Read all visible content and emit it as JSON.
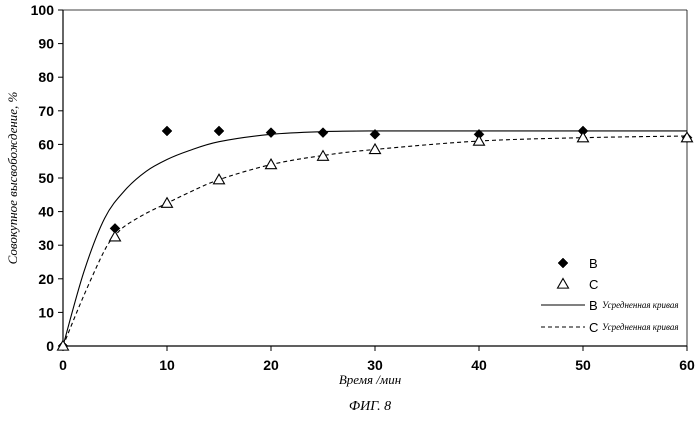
{
  "chart_data": {
    "type": "scatter",
    "figure_caption": "ФИГ. 8",
    "xlabel": "Время /мин",
    "ylabel": "Совокупное высвобождение, %",
    "xlim": [
      0,
      60
    ],
    "ylim": [
      0,
      100
    ],
    "x_ticks": [
      0,
      10,
      20,
      30,
      40,
      50,
      60
    ],
    "y_ticks": [
      0,
      10,
      20,
      30,
      40,
      50,
      60,
      70,
      80,
      90,
      100
    ],
    "grid": false,
    "legend_position": "bottom-right",
    "series": [
      {
        "name": "B",
        "kind": "points",
        "marker": "filled-diamond",
        "x": [
          0,
          5,
          10,
          15,
          20,
          25,
          30,
          40,
          50,
          60
        ],
        "y": [
          0,
          35,
          64,
          64,
          63.5,
          63.5,
          63,
          63,
          64,
          62
        ]
      },
      {
        "name": "C",
        "kind": "points",
        "marker": "open-triangle",
        "x": [
          0,
          5,
          10,
          15,
          20,
          25,
          30,
          40,
          50,
          60
        ],
        "y": [
          0,
          32.5,
          42.5,
          49.5,
          54,
          56.5,
          58.5,
          61,
          62,
          62
        ]
      },
      {
        "name": "B Усредненная кривая",
        "kind": "line",
        "style": "solid",
        "x": [
          0,
          2,
          4,
          6,
          8,
          10,
          12,
          15,
          20,
          25,
          30,
          40,
          50,
          60
        ],
        "y": [
          0,
          22,
          38,
          46.5,
          52,
          55.5,
          58,
          60.8,
          63,
          63.8,
          64,
          64,
          64,
          64
        ]
      },
      {
        "name": "C Усредненная кривая",
        "kind": "line",
        "style": "dashed",
        "x": [
          0,
          2,
          4,
          5,
          6,
          8,
          10,
          12,
          15,
          20,
          25,
          30,
          40,
          50,
          60
        ],
        "y": [
          0,
          15,
          28.5,
          32.8,
          35.8,
          39.5,
          42.5,
          45.5,
          49.5,
          54,
          56.7,
          58.5,
          61,
          62,
          62.5
        ]
      }
    ],
    "legend": [
      {
        "marker": "filled-diamond",
        "label": "B",
        "sublabel": ""
      },
      {
        "marker": "open-triangle",
        "label": "C",
        "sublabel": ""
      },
      {
        "marker": "solid-line",
        "label": "B",
        "sublabel": "Усредненная кривая"
      },
      {
        "marker": "dashed-line",
        "label": "C",
        "sublabel": "Усредненная кривая"
      }
    ]
  }
}
